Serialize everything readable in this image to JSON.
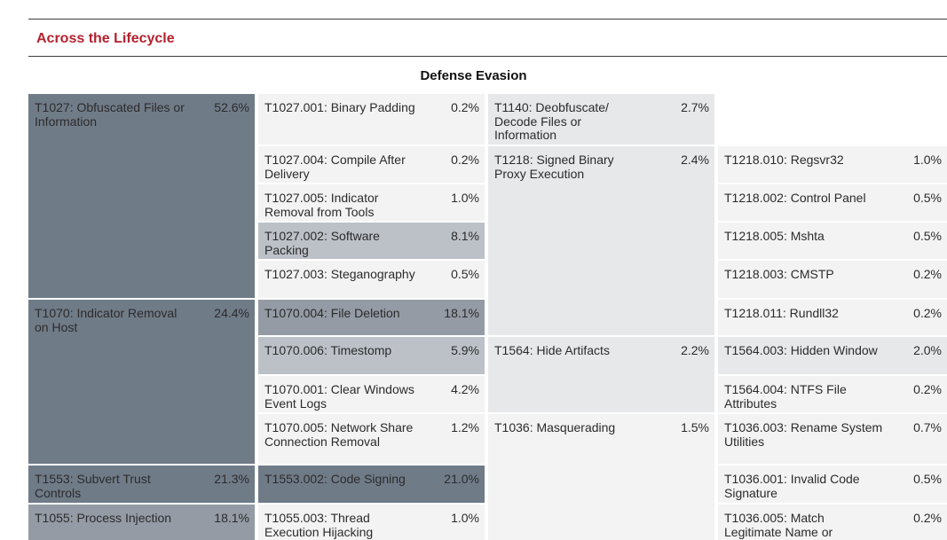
{
  "section_title": "Across the Lifecycle",
  "chart_title": "Defense Evasion",
  "techniques": {
    "t1027": {
      "name": "T1027: Obfuscated Files or Information",
      "pct": "52.6%"
    },
    "t1070": {
      "name": "T1070: Indicator Removal on Host",
      "pct": "24.4%"
    },
    "t1553": {
      "name": "T1553: Subvert Trust Controls",
      "pct": "21.3%"
    },
    "t1055": {
      "name": "T1055: Process Injection",
      "pct": "18.1%"
    },
    "t1140": {
      "name": "T1140: Deobfuscate/ Decode Files or Information",
      "pct": "2.7%"
    },
    "t1218": {
      "name": "T1218: Signed Binary Proxy Execution",
      "pct": "2.4%"
    },
    "t1564": {
      "name": "T1564: Hide Artifacts",
      "pct": "2.2%"
    },
    "t1036": {
      "name": "T1036: Masquerading",
      "pct": "1.5%"
    }
  },
  "subtechniques": {
    "t1027_001": {
      "name": "T1027.001: Binary Padding",
      "pct": "0.2%"
    },
    "t1027_004": {
      "name": "T1027.004: Compile After Delivery",
      "pct": "0.2%"
    },
    "t1027_005": {
      "name": "T1027.005: Indicator Removal from Tools",
      "pct": "1.0%"
    },
    "t1027_002": {
      "name": "T1027.002: Software Packing",
      "pct": "8.1%"
    },
    "t1027_003": {
      "name": "T1027.003: Steganography",
      "pct": "0.5%"
    },
    "t1070_004": {
      "name": "T1070.004: File Deletion",
      "pct": "18.1%"
    },
    "t1070_006": {
      "name": "T1070.006: Timestomp",
      "pct": "5.9%"
    },
    "t1070_001": {
      "name": "T1070.001: Clear Windows Event Logs",
      "pct": "4.2%"
    },
    "t1070_005": {
      "name": "T1070.005: Network Share Connection Removal",
      "pct": "1.2%"
    },
    "t1553_002": {
      "name": "T1553.002: Code Signing",
      "pct": "21.0%"
    },
    "t1055_003": {
      "name": "T1055.003: Thread Execution Hijacking",
      "pct": "1.0%"
    },
    "t1218_010": {
      "name": "T1218.010: Regsvr32",
      "pct": "1.0%"
    },
    "t1218_002": {
      "name": "T1218.002: Control Panel",
      "pct": "0.5%"
    },
    "t1218_005": {
      "name": "T1218.005: Mshta",
      "pct": "0.5%"
    },
    "t1218_003": {
      "name": "T1218.003: CMSTP",
      "pct": "0.2%"
    },
    "t1218_011": {
      "name": "T1218.011: Rundll32",
      "pct": "0.2%"
    },
    "t1564_003": {
      "name": "T1564.003: Hidden Window",
      "pct": "2.0%"
    },
    "t1564_004": {
      "name": "T1564.004: NTFS File Attributes",
      "pct": "0.2%"
    },
    "t1036_003": {
      "name": "T1036.003: Rename System Utilities",
      "pct": "0.7%"
    },
    "t1036_001": {
      "name": "T1036.001: Invalid Code Signature",
      "pct": "0.5%"
    },
    "t1036_005": {
      "name": "T1036.005: Match Legitimate Name or",
      "pct": "0.2%"
    }
  },
  "colors": {
    "accent": "#b5212f",
    "shade_dark": "#707b88",
    "shade_mid": "#949ba5",
    "shade_light": "#bcc1c8",
    "shade_pale": "#e7e8ea",
    "shade_xpale": "#f3f3f4"
  }
}
